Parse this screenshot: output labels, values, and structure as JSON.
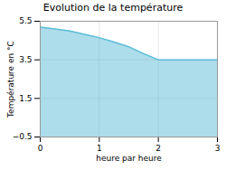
{
  "chart_data": {
    "type": "area",
    "title": "Evolution de la température",
    "xlabel": "heure par heure",
    "ylabel": "Température en °C",
    "x": [
      0,
      0.25,
      0.5,
      0.75,
      1.0,
      1.25,
      1.5,
      1.75,
      2.0,
      2.5,
      3.0
    ],
    "values": [
      5.2,
      5.1,
      5.0,
      4.82,
      4.65,
      4.42,
      4.18,
      3.82,
      3.5,
      3.5,
      3.5
    ],
    "color": "#5bbcd6",
    "xlim": [
      0,
      3
    ],
    "ylim": [
      -0.5,
      5.5
    ],
    "xticks": [
      0,
      1,
      2,
      3
    ],
    "yticks": [
      -0.5,
      1.5,
      3.5,
      5.5
    ],
    "grid": true
  }
}
